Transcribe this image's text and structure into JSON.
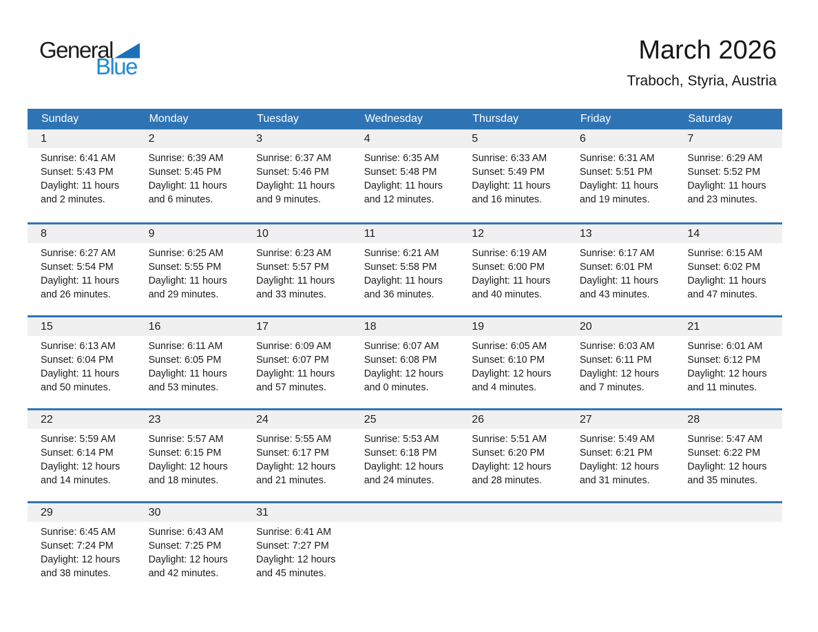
{
  "logo": {
    "general": "General",
    "blue": "Blue"
  },
  "header": {
    "title": "March 2026",
    "subtitle": "Traboch, Styria, Austria"
  },
  "weekdays": [
    "Sunday",
    "Monday",
    "Tuesday",
    "Wednesday",
    "Thursday",
    "Friday",
    "Saturday"
  ],
  "labels": {
    "sunrise": "Sunrise:",
    "sunset": "Sunset:",
    "daylight": "Daylight:",
    "hours": "hours",
    "and": "and",
    "minutes": "minutes."
  },
  "colors": {
    "header_bar": "#2E74B5",
    "week_divider": "#2E74B5",
    "day_number_band": "#F0F0F0",
    "weekday_text": "#FFFFFF",
    "logo_triangle": "#1C70B8",
    "logo_blue_text": "#1E8BD1"
  },
  "weeks": [
    [
      {
        "day": 1,
        "sunrise": "6:41 AM",
        "sunset": "5:43 PM",
        "daylight_hours": 11,
        "daylight_minutes": 2
      },
      {
        "day": 2,
        "sunrise": "6:39 AM",
        "sunset": "5:45 PM",
        "daylight_hours": 11,
        "daylight_minutes": 6
      },
      {
        "day": 3,
        "sunrise": "6:37 AM",
        "sunset": "5:46 PM",
        "daylight_hours": 11,
        "daylight_minutes": 9
      },
      {
        "day": 4,
        "sunrise": "6:35 AM",
        "sunset": "5:48 PM",
        "daylight_hours": 11,
        "daylight_minutes": 12
      },
      {
        "day": 5,
        "sunrise": "6:33 AM",
        "sunset": "5:49 PM",
        "daylight_hours": 11,
        "daylight_minutes": 16
      },
      {
        "day": 6,
        "sunrise": "6:31 AM",
        "sunset": "5:51 PM",
        "daylight_hours": 11,
        "daylight_minutes": 19
      },
      {
        "day": 7,
        "sunrise": "6:29 AM",
        "sunset": "5:52 PM",
        "daylight_hours": 11,
        "daylight_minutes": 23
      }
    ],
    [
      {
        "day": 8,
        "sunrise": "6:27 AM",
        "sunset": "5:54 PM",
        "daylight_hours": 11,
        "daylight_minutes": 26
      },
      {
        "day": 9,
        "sunrise": "6:25 AM",
        "sunset": "5:55 PM",
        "daylight_hours": 11,
        "daylight_minutes": 29
      },
      {
        "day": 10,
        "sunrise": "6:23 AM",
        "sunset": "5:57 PM",
        "daylight_hours": 11,
        "daylight_minutes": 33
      },
      {
        "day": 11,
        "sunrise": "6:21 AM",
        "sunset": "5:58 PM",
        "daylight_hours": 11,
        "daylight_minutes": 36
      },
      {
        "day": 12,
        "sunrise": "6:19 AM",
        "sunset": "6:00 PM",
        "daylight_hours": 11,
        "daylight_minutes": 40
      },
      {
        "day": 13,
        "sunrise": "6:17 AM",
        "sunset": "6:01 PM",
        "daylight_hours": 11,
        "daylight_minutes": 43
      },
      {
        "day": 14,
        "sunrise": "6:15 AM",
        "sunset": "6:02 PM",
        "daylight_hours": 11,
        "daylight_minutes": 47
      }
    ],
    [
      {
        "day": 15,
        "sunrise": "6:13 AM",
        "sunset": "6:04 PM",
        "daylight_hours": 11,
        "daylight_minutes": 50
      },
      {
        "day": 16,
        "sunrise": "6:11 AM",
        "sunset": "6:05 PM",
        "daylight_hours": 11,
        "daylight_minutes": 53
      },
      {
        "day": 17,
        "sunrise": "6:09 AM",
        "sunset": "6:07 PM",
        "daylight_hours": 11,
        "daylight_minutes": 57
      },
      {
        "day": 18,
        "sunrise": "6:07 AM",
        "sunset": "6:08 PM",
        "daylight_hours": 12,
        "daylight_minutes": 0
      },
      {
        "day": 19,
        "sunrise": "6:05 AM",
        "sunset": "6:10 PM",
        "daylight_hours": 12,
        "daylight_minutes": 4
      },
      {
        "day": 20,
        "sunrise": "6:03 AM",
        "sunset": "6:11 PM",
        "daylight_hours": 12,
        "daylight_minutes": 7
      },
      {
        "day": 21,
        "sunrise": "6:01 AM",
        "sunset": "6:12 PM",
        "daylight_hours": 12,
        "daylight_minutes": 11
      }
    ],
    [
      {
        "day": 22,
        "sunrise": "5:59 AM",
        "sunset": "6:14 PM",
        "daylight_hours": 12,
        "daylight_minutes": 14
      },
      {
        "day": 23,
        "sunrise": "5:57 AM",
        "sunset": "6:15 PM",
        "daylight_hours": 12,
        "daylight_minutes": 18
      },
      {
        "day": 24,
        "sunrise": "5:55 AM",
        "sunset": "6:17 PM",
        "daylight_hours": 12,
        "daylight_minutes": 21
      },
      {
        "day": 25,
        "sunrise": "5:53 AM",
        "sunset": "6:18 PM",
        "daylight_hours": 12,
        "daylight_minutes": 24
      },
      {
        "day": 26,
        "sunrise": "5:51 AM",
        "sunset": "6:20 PM",
        "daylight_hours": 12,
        "daylight_minutes": 28
      },
      {
        "day": 27,
        "sunrise": "5:49 AM",
        "sunset": "6:21 PM",
        "daylight_hours": 12,
        "daylight_minutes": 31
      },
      {
        "day": 28,
        "sunrise": "5:47 AM",
        "sunset": "6:22 PM",
        "daylight_hours": 12,
        "daylight_minutes": 35
      }
    ],
    [
      {
        "day": 29,
        "sunrise": "6:45 AM",
        "sunset": "7:24 PM",
        "daylight_hours": 12,
        "daylight_minutes": 38
      },
      {
        "day": 30,
        "sunrise": "6:43 AM",
        "sunset": "7:25 PM",
        "daylight_hours": 12,
        "daylight_minutes": 42
      },
      {
        "day": 31,
        "sunrise": "6:41 AM",
        "sunset": "7:27 PM",
        "daylight_hours": 12,
        "daylight_minutes": 45
      },
      null,
      null,
      null,
      null
    ]
  ]
}
